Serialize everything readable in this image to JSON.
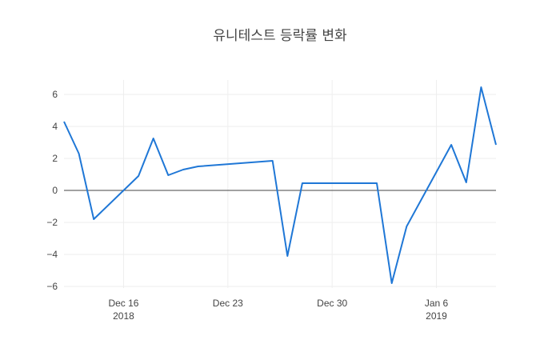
{
  "chart_data": {
    "type": "line",
    "title": "유니테스트 등락률 변화",
    "xlabel": "",
    "ylabel": "",
    "x_range": [
      "2018-12-12",
      "2019-01-10"
    ],
    "ylim": [
      -6.1,
      6.9
    ],
    "y_ticks": [
      6,
      4,
      2,
      0,
      -2,
      -4,
      -6
    ],
    "y_tick_labels": [
      "6",
      "4",
      "2",
      "0",
      "−2",
      "−4",
      "−6"
    ],
    "x_ticks": [
      {
        "date": "2018-12-16",
        "label": "Dec 16",
        "sublabel": "2018"
      },
      {
        "date": "2018-12-23",
        "label": "Dec 23",
        "sublabel": ""
      },
      {
        "date": "2018-12-30",
        "label": "Dec 30",
        "sublabel": ""
      },
      {
        "date": "2019-01-06",
        "label": "Jan 6",
        "sublabel": "2019"
      }
    ],
    "grid": true,
    "zero_line": true,
    "line_color": "#1f77d6",
    "series": [
      {
        "x": [
          "2018-12-12",
          "2018-12-13",
          "2018-12-14",
          "2018-12-17",
          "2018-12-18",
          "2018-12-19",
          "2018-12-20",
          "2018-12-21",
          "2018-12-26",
          "2018-12-27",
          "2018-12-28",
          "2019-01-02",
          "2019-01-03",
          "2019-01-04",
          "2019-01-07",
          "2019-01-08",
          "2019-01-09",
          "2019-01-10"
        ],
        "y": [
          4.3,
          2.3,
          -1.8,
          0.9,
          3.25,
          0.95,
          1.3,
          1.5,
          1.85,
          -4.1,
          0.45,
          0.45,
          -5.8,
          -2.25,
          2.85,
          0.5,
          6.45,
          2.85
        ]
      }
    ]
  }
}
